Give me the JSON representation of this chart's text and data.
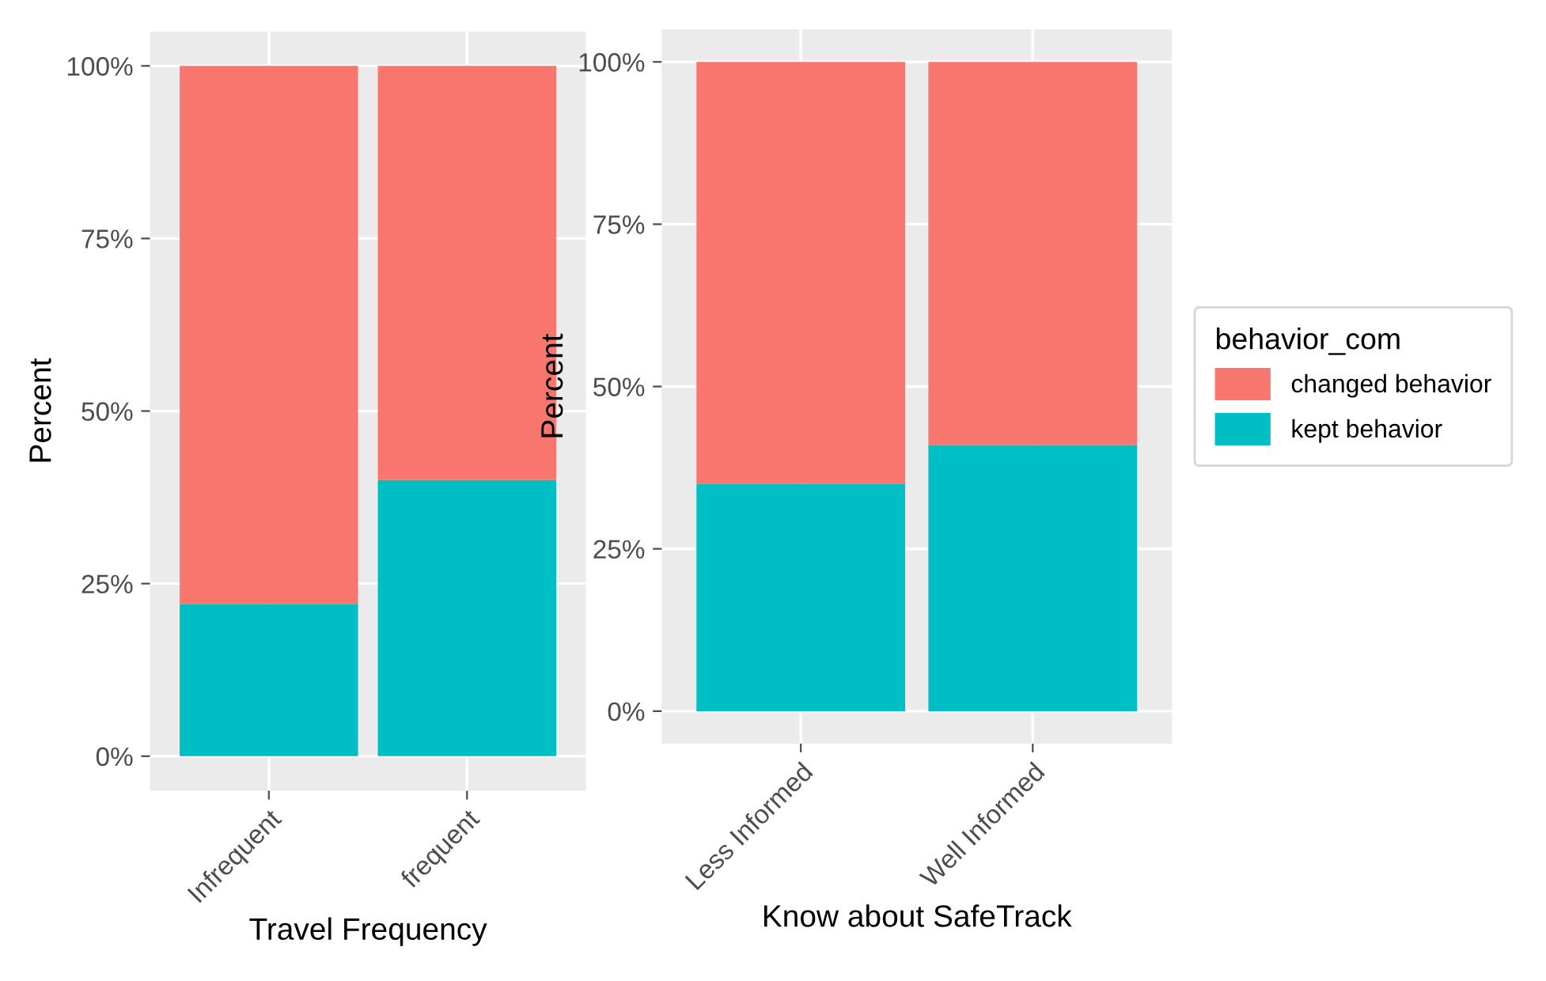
{
  "chart_data": [
    {
      "type": "bar",
      "stacked": true,
      "xlabel": "Travel Frequency",
      "ylabel": "Percent",
      "categories": [
        "Infrequent",
        "frequent"
      ],
      "series": [
        {
          "color": "#00bfc4",
          "values": [
            22,
            40
          ]
        },
        {
          "color": "#f8766d",
          "values": [
            78,
            60
          ]
        }
      ],
      "ylim": [
        -5,
        105
      ],
      "yticks": [
        {
          "value": 0,
          "label": "0%"
        },
        {
          "value": 25,
          "label": "25%"
        },
        {
          "value": 50,
          "label": "50%"
        },
        {
          "value": 75,
          "label": "75%"
        },
        {
          "value": 100,
          "label": "100%"
        }
      ],
      "grid": true,
      "legend": false
    },
    {
      "type": "bar",
      "stacked": true,
      "xlabel": "Know about SafeTrack",
      "ylabel": "Percent",
      "categories": [
        "Less Informed",
        "Well Informed"
      ],
      "series": [
        {
          "name": "kept behavior",
          "color": "#00bfc4",
          "values": [
            35,
            41
          ]
        },
        {
          "name": "changed behavior",
          "color": "#f8766d",
          "values": [
            65,
            59
          ]
        }
      ],
      "ylim": [
        -5,
        105
      ],
      "yticks": [
        {
          "value": 0,
          "label": "0%"
        },
        {
          "value": 25,
          "label": "25%"
        },
        {
          "value": 50,
          "label": "50%"
        },
        {
          "value": 75,
          "label": "75%"
        },
        {
          "value": 100,
          "label": "100%"
        }
      ],
      "grid": true,
      "legend": "right",
      "legend_title": "behavior_com"
    }
  ]
}
